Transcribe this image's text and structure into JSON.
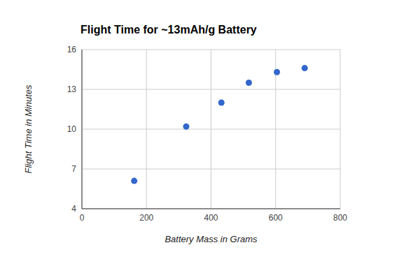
{
  "chart_data": {
    "type": "scatter",
    "title": "Flight Time for ~13mAh/g Battery",
    "x_label": "Battery Mass in Grams",
    "y_label": "Flight Time in Minutes",
    "x": [
      162,
      323,
      432,
      517,
      604,
      690
    ],
    "values": [
      6.1,
      10.2,
      12.0,
      13.5,
      14.3,
      14.6
    ],
    "color": "#3366cc",
    "marker": "circle",
    "xlim": [
      0,
      800
    ],
    "xticks": [
      0,
      200,
      400,
      600,
      800
    ],
    "ylim": [
      4,
      16
    ],
    "yticks": [
      4,
      7,
      10,
      13,
      16
    ],
    "grid": true
  }
}
